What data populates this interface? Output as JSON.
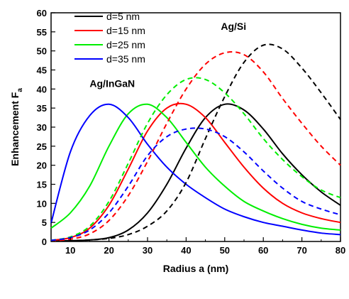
{
  "chart_data": {
    "type": "line",
    "title": "",
    "xlabel": "Radius a (nm)",
    "ylabel": "Enhancement F",
    "ylabel_sub": "a",
    "xlim": [
      5,
      80
    ],
    "ylim": [
      0,
      60
    ],
    "xticks": [
      10,
      20,
      30,
      40,
      50,
      60,
      70,
      80
    ],
    "yticks": [
      0,
      5,
      10,
      15,
      20,
      25,
      30,
      35,
      40,
      45,
      50,
      55,
      60
    ],
    "grid": false,
    "legend_position": "top-left",
    "annotations": [
      {
        "text": "Ag/InGaN",
        "x": 15,
        "y": 40.5
      },
      {
        "text": "Ag/Si",
        "x": 49,
        "y": 55.5
      }
    ],
    "series": [
      {
        "name": "d=5 nm",
        "group": "Ag/InGaN",
        "color": "#000000",
        "dash": "solid",
        "x": [
          5,
          10,
          15,
          20,
          25,
          30,
          35,
          40,
          45,
          50,
          55,
          60,
          65,
          70,
          75,
          80
        ],
        "y": [
          0.1,
          0.2,
          0.4,
          1.0,
          3.0,
          7.5,
          15.0,
          24.5,
          32.5,
          36.0,
          34.5,
          29.5,
          23.0,
          17.5,
          13.0,
          9.5
        ]
      },
      {
        "name": "d=15 nm",
        "group": "Ag/InGaN",
        "color": "#ff0000",
        "dash": "solid",
        "x": [
          5,
          10,
          15,
          20,
          25,
          30,
          35,
          40,
          45,
          50,
          55,
          60,
          65,
          70,
          75,
          80
        ],
        "y": [
          0.3,
          1.0,
          3.5,
          9.5,
          19.0,
          29.0,
          35.0,
          36.0,
          32.5,
          26.0,
          19.5,
          14.0,
          10.0,
          7.5,
          6.0,
          5.0
        ]
      },
      {
        "name": "d=25 nm",
        "group": "Ag/InGaN",
        "color": "#00ee00",
        "dash": "solid",
        "x": [
          5,
          10,
          15,
          20,
          25,
          30,
          35,
          40,
          45,
          50,
          55,
          60,
          65,
          70,
          75,
          80
        ],
        "y": [
          3.5,
          7.5,
          14.5,
          25.0,
          33.5,
          36.0,
          32.5,
          26.0,
          19.5,
          14.5,
          10.5,
          8.0,
          6.0,
          4.5,
          3.5,
          3.0
        ]
      },
      {
        "name": "d=35 nm",
        "group": "Ag/InGaN",
        "color": "#0000ff",
        "dash": "solid",
        "x": [
          5,
          10,
          15,
          20,
          25,
          30,
          35,
          40,
          45,
          50,
          55,
          60,
          65,
          70,
          75,
          80
        ],
        "y": [
          4.8,
          23.5,
          33.0,
          36.0,
          32.5,
          25.5,
          19.5,
          15.0,
          11.5,
          8.5,
          6.5,
          5.0,
          4.0,
          3.0,
          2.2,
          1.8
        ]
      },
      {
        "name": "",
        "group": "Ag/Si",
        "color": "#000000",
        "dash": "dashed",
        "x": [
          5,
          10,
          15,
          20,
          25,
          30,
          35,
          40,
          45,
          50,
          55,
          60,
          65,
          70,
          75,
          80
        ],
        "y": [
          0.1,
          0.2,
          0.4,
          0.8,
          1.8,
          4.0,
          8.0,
          15.5,
          27.0,
          38.0,
          47.0,
          51.5,
          50.5,
          45.5,
          39.0,
          32.0
        ]
      },
      {
        "name": "",
        "group": "Ag/Si",
        "color": "#ff0000",
        "dash": "dashed",
        "x": [
          5,
          10,
          15,
          20,
          25,
          30,
          35,
          40,
          45,
          50,
          55,
          60,
          65,
          70,
          75,
          80
        ],
        "y": [
          0.2,
          0.6,
          2.0,
          5.5,
          12.0,
          21.0,
          31.0,
          40.0,
          46.5,
          49.5,
          49.0,
          44.5,
          37.5,
          31.0,
          25.0,
          20.0
        ]
      },
      {
        "name": "",
        "group": "Ag/Si",
        "color": "#00ee00",
        "dash": "dashed",
        "x": [
          5,
          10,
          15,
          20,
          25,
          30,
          35,
          40,
          45,
          50,
          55,
          60,
          65,
          70,
          75,
          80
        ],
        "y": [
          0.3,
          1.2,
          4.0,
          10.5,
          20.5,
          31.0,
          38.5,
          42.5,
          42.5,
          39.0,
          33.5,
          27.0,
          21.5,
          17.0,
          13.5,
          11.5
        ]
      },
      {
        "name": "",
        "group": "Ag/Si",
        "color": "#0000ff",
        "dash": "dashed",
        "x": [
          5,
          10,
          15,
          20,
          25,
          30,
          35,
          40,
          45,
          50,
          55,
          60,
          65,
          70,
          75,
          80
        ],
        "y": [
          0.3,
          1.0,
          3.0,
          7.5,
          14.5,
          22.5,
          27.5,
          29.5,
          29.5,
          27.5,
          23.5,
          18.5,
          14.0,
          10.5,
          8.5,
          7.0
        ]
      }
    ]
  }
}
